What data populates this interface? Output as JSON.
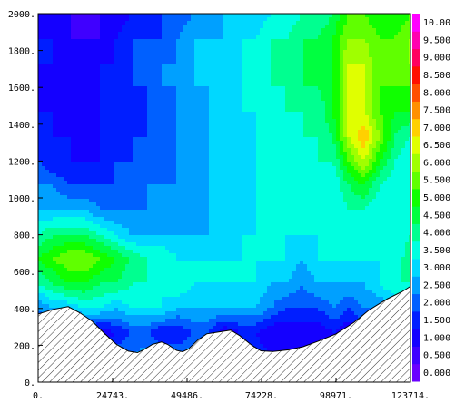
{
  "chart_data": {
    "type": "heatmap",
    "subtype": "filled-contour",
    "title": "",
    "xlabel": "",
    "ylabel": "",
    "xlim": [
      0,
      123714
    ],
    "ylim": [
      0,
      2000
    ],
    "x_tick_labels": [
      "0.",
      "24743.",
      "49486.",
      "74228.",
      "98971.",
      "123714."
    ],
    "x_tick_values": [
      0,
      24743,
      49486,
      74228,
      98971,
      123714
    ],
    "y_tick_labels": [
      "0.",
      "200.",
      "400.",
      "600.",
      "800.",
      "1000.",
      "1200.",
      "1400.",
      "1600.",
      "1800.",
      "2000."
    ],
    "y_tick_values": [
      0,
      200,
      400,
      600,
      800,
      1000,
      1200,
      1400,
      1600,
      1800,
      2000
    ],
    "colorbar": {
      "labels": [
        "0.000",
        "0.500",
        "1.000",
        "1.500",
        "2.000",
        "2.500",
        "3.000",
        "3.500",
        "4.000",
        "4.500",
        "5.000",
        "5.500",
        "6.000",
        "6.500",
        "7.000",
        "7.500",
        "8.000",
        "8.500",
        "9.000",
        "9.500",
        "10.00"
      ],
      "colors": [
        "#6a00ff",
        "#3f00ff",
        "#1400ff",
        "#001eff",
        "#0060ff",
        "#00a0ff",
        "#00d8ff",
        "#00ffe0",
        "#00ff90",
        "#00ff40",
        "#10ff00",
        "#60ff00",
        "#a0ff00",
        "#e0ff00",
        "#ffd000",
        "#ff9000",
        "#ff5000",
        "#ff1000",
        "#ff0060",
        "#ff00b0",
        "#ff00ff"
      ]
    },
    "terrain": [
      [
        0,
        370
      ],
      [
        5000,
        395
      ],
      [
        10000,
        410
      ],
      [
        14000,
        375
      ],
      [
        18000,
        330
      ],
      [
        22000,
        265
      ],
      [
        26000,
        205
      ],
      [
        30000,
        168
      ],
      [
        33000,
        160
      ],
      [
        35000,
        175
      ],
      [
        38000,
        205
      ],
      [
        41000,
        218
      ],
      [
        43000,
        205
      ],
      [
        46000,
        172
      ],
      [
        48000,
        165
      ],
      [
        50000,
        180
      ],
      [
        53000,
        228
      ],
      [
        56000,
        262
      ],
      [
        60000,
        272
      ],
      [
        64000,
        282
      ],
      [
        67000,
        252
      ],
      [
        71000,
        200
      ],
      [
        74000,
        170
      ],
      [
        78000,
        166
      ],
      [
        83000,
        175
      ],
      [
        88000,
        192
      ],
      [
        93000,
        222
      ],
      [
        99000,
        262
      ],
      [
        105000,
        325
      ],
      [
        110000,
        392
      ],
      [
        116000,
        452
      ],
      [
        121000,
        492
      ],
      [
        123714,
        520
      ]
    ],
    "field": [
      [
        3.0,
        3.0,
        2.5,
        2.5,
        2.5,
        3.0,
        3.0,
        3.0,
        3.5,
        3.0,
        3.0,
        3.0,
        3.0,
        3.0,
        2.5,
        2.0,
        1.5,
        1.5,
        1.5,
        2.0,
        2.0,
        2.0,
        2.5,
        2.5,
        2.5
      ],
      [
        3.0,
        2.5,
        2.5,
        2.5,
        2.0,
        2.5,
        2.5,
        3.0,
        2.5,
        2.5,
        3.0,
        2.5,
        2.5,
        2.5,
        2.0,
        1.5,
        1.5,
        1.0,
        1.5,
        1.5,
        1.5,
        2.0,
        2.0,
        2.5,
        2.5
      ],
      [
        2.0,
        1.5,
        1.0,
        1.5,
        1.0,
        1.5,
        2.0,
        2.0,
        1.5,
        1.5,
        2.0,
        2.0,
        1.0,
        1.5,
        1.5,
        1.0,
        1.0,
        1.0,
        1.0,
        1.5,
        1.0,
        1.5,
        1.5,
        2.0,
        2.0
      ],
      [
        2.5,
        3.0,
        3.0,
        3.5,
        3.5,
        3.0,
        3.5,
        3.5,
        3.5,
        3.0,
        3.0,
        3.0,
        3.0,
        3.0,
        3.0,
        2.5,
        2.0,
        2.0,
        2.0,
        2.5,
        2.0,
        2.5,
        2.5,
        3.0,
        3.5
      ],
      [
        4.0,
        4.5,
        5.0,
        5.0,
        4.5,
        4.5,
        4.0,
        4.0,
        3.5,
        4.0,
        3.5,
        3.5,
        3.5,
        3.5,
        3.5,
        3.0,
        3.0,
        2.5,
        3.0,
        3.0,
        3.0,
        3.0,
        3.5,
        4.0,
        4.0
      ],
      [
        5.0,
        5.5,
        6.0,
        6.0,
        5.5,
        5.0,
        4.5,
        4.0,
        4.0,
        3.5,
        3.5,
        3.5,
        3.5,
        3.5,
        3.5,
        3.5,
        3.5,
        3.0,
        3.5,
        3.5,
        3.5,
        3.5,
        3.5,
        3.5,
        4.5
      ],
      [
        4.0,
        4.5,
        4.5,
        4.5,
        4.0,
        3.5,
        3.0,
        3.0,
        3.0,
        3.0,
        3.0,
        3.0,
        3.0,
        3.5,
        3.5,
        3.5,
        3.5,
        3.5,
        3.5,
        3.5,
        3.5,
        3.5,
        3.5,
        3.5,
        4.0
      ],
      [
        3.0,
        3.0,
        3.0,
        3.0,
        2.5,
        2.5,
        2.5,
        2.5,
        2.5,
        2.5,
        2.5,
        3.0,
        3.0,
        3.0,
        3.5,
        3.5,
        3.5,
        3.5,
        3.5,
        3.5,
        4.0,
        4.0,
        3.5,
        3.5,
        3.5
      ],
      [
        2.5,
        2.5,
        2.0,
        2.0,
        2.0,
        2.0,
        2.0,
        2.5,
        2.5,
        2.5,
        2.5,
        3.0,
        3.0,
        3.0,
        3.5,
        3.5,
        3.5,
        3.5,
        3.5,
        3.5,
        4.5,
        5.0,
        4.0,
        3.5,
        3.5
      ],
      [
        2.0,
        1.5,
        1.5,
        1.5,
        1.5,
        2.0,
        2.0,
        2.5,
        2.0,
        2.5,
        2.5,
        3.0,
        3.0,
        3.0,
        3.5,
        3.5,
        3.5,
        3.5,
        4.0,
        4.0,
        5.5,
        6.5,
        5.0,
        4.0,
        3.5
      ],
      [
        2.0,
        1.5,
        1.5,
        1.0,
        1.5,
        1.5,
        2.0,
        2.0,
        2.0,
        2.5,
        2.5,
        3.0,
        3.0,
        3.0,
        3.5,
        3.5,
        3.5,
        4.0,
        4.0,
        4.5,
        6.5,
        7.5,
        6.0,
        4.5,
        4.0
      ],
      [
        1.5,
        1.5,
        1.0,
        1.0,
        1.5,
        1.5,
        1.5,
        2.0,
        2.0,
        2.5,
        2.5,
        3.0,
        3.0,
        3.5,
        3.5,
        3.5,
        4.0,
        4.0,
        4.0,
        5.0,
        6.5,
        6.5,
        5.5,
        5.0,
        5.0
      ],
      [
        1.5,
        1.0,
        1.0,
        1.5,
        1.5,
        1.5,
        2.0,
        2.0,
        2.5,
        2.5,
        3.0,
        3.0,
        3.0,
        3.5,
        3.5,
        4.0,
        4.0,
        4.5,
        4.5,
        5.0,
        6.5,
        6.5,
        5.5,
        5.5,
        5.5
      ],
      [
        1.5,
        1.5,
        1.0,
        1.0,
        1.5,
        1.5,
        2.0,
        2.0,
        2.5,
        2.5,
        3.0,
        3.0,
        3.5,
        3.5,
        4.0,
        4.0,
        4.0,
        4.5,
        4.5,
        5.0,
        6.5,
        6.5,
        5.5,
        5.5,
        6.0
      ],
      [
        1.5,
        1.5,
        1.0,
        1.0,
        1.0,
        1.5,
        2.0,
        2.0,
        2.0,
        2.5,
        3.0,
        3.0,
        3.0,
        3.5,
        3.5,
        4.0,
        4.0,
        4.5,
        4.5,
        5.0,
        6.0,
        6.0,
        5.5,
        5.5,
        6.0
      ],
      [
        1.0,
        1.0,
        1.0,
        0.5,
        1.0,
        1.0,
        1.5,
        1.5,
        2.0,
        2.0,
        2.5,
        2.5,
        3.0,
        3.0,
        3.0,
        3.5,
        3.5,
        4.0,
        4.0,
        4.5,
        5.5,
        5.5,
        5.0,
        5.0,
        5.5
      ]
    ]
  }
}
